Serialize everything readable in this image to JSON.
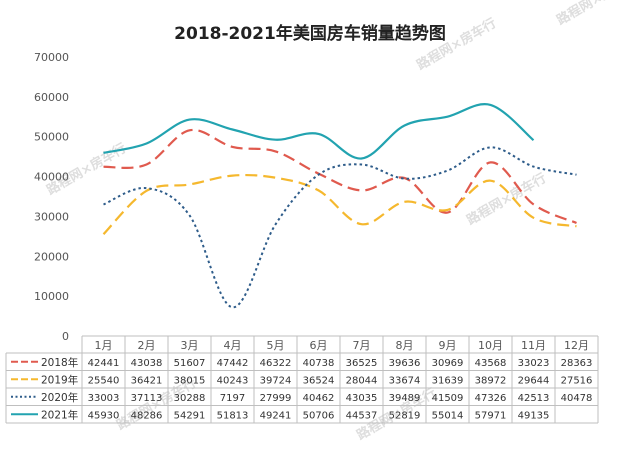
{
  "chart_data": {
    "type": "line",
    "title": "2018-2021年美国房车销量趋势图",
    "categories": [
      "1月",
      "2月",
      "3月",
      "4月",
      "5月",
      "6月",
      "7月",
      "8月",
      "9月",
      "10月",
      "11月",
      "12月"
    ],
    "ylim": [
      0,
      70000
    ],
    "yticks": [
      0,
      10000,
      20000,
      30000,
      40000,
      50000,
      60000,
      70000
    ],
    "grid": false,
    "legend": "data-table-below",
    "series": [
      {
        "name": "2018年",
        "color": "#e05a4e",
        "dash": "dashed",
        "values": [
          42441,
          43038,
          51607,
          47442,
          46322,
          40738,
          36525,
          39636,
          30969,
          43568,
          33023,
          28363
        ]
      },
      {
        "name": "2019年",
        "color": "#f5b82e",
        "dash": "dashed",
        "values": [
          25540,
          36421,
          38015,
          40243,
          39724,
          36524,
          28044,
          33674,
          31639,
          38972,
          29644,
          27516
        ]
      },
      {
        "name": "2020年",
        "color": "#2e5c8a",
        "dash": "dotted",
        "values": [
          33003,
          37113,
          30288,
          7197,
          27999,
          40462,
          43035,
          39489,
          41509,
          47326,
          42513,
          40478
        ]
      },
      {
        "name": "2021年",
        "color": "#22a3b0",
        "dash": "solid",
        "values": [
          45930,
          48286,
          54291,
          51813,
          49241,
          50706,
          44537,
          52819,
          55014,
          57971,
          49135,
          null
        ]
      }
    ]
  },
  "watermark": "路程网×房车行"
}
